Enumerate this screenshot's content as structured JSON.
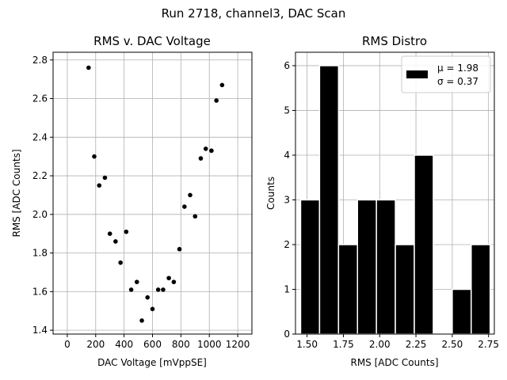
{
  "figure": {
    "suptitle": "Run 2718, channel3, DAC Scan"
  },
  "chart_data": [
    {
      "type": "scatter",
      "title": "RMS v. DAC Voltage",
      "xlabel": "DAC Voltage [mVppSE]",
      "ylabel": "RMS [ADC Counts]",
      "xlim": [
        -100,
        1300
      ],
      "ylim": [
        1.38,
        2.84
      ],
      "xticks": [
        0,
        200,
        400,
        600,
        800,
        1000,
        1200
      ],
      "yticks": [
        1.4,
        1.6,
        1.8,
        2.0,
        2.2,
        2.4,
        2.6,
        2.8
      ],
      "ytick_labels": [
        "1.4",
        "1.6",
        "1.8",
        "2.0",
        "2.2",
        "2.4",
        "2.6",
        "2.8"
      ],
      "grid": true,
      "color": "#000000",
      "points": [
        {
          "x": 150,
          "y": 2.76
        },
        {
          "x": 190,
          "y": 2.3
        },
        {
          "x": 225,
          "y": 2.15
        },
        {
          "x": 265,
          "y": 2.19
        },
        {
          "x": 300,
          "y": 1.9
        },
        {
          "x": 340,
          "y": 1.86
        },
        {
          "x": 375,
          "y": 1.75
        },
        {
          "x": 415,
          "y": 1.91
        },
        {
          "x": 450,
          "y": 1.61
        },
        {
          "x": 490,
          "y": 1.65
        },
        {
          "x": 525,
          "y": 1.45
        },
        {
          "x": 565,
          "y": 1.57
        },
        {
          "x": 600,
          "y": 1.51
        },
        {
          "x": 640,
          "y": 1.61
        },
        {
          "x": 675,
          "y": 1.61
        },
        {
          "x": 715,
          "y": 1.67
        },
        {
          "x": 750,
          "y": 1.65
        },
        {
          "x": 790,
          "y": 1.82
        },
        {
          "x": 825,
          "y": 2.04
        },
        {
          "x": 865,
          "y": 2.1
        },
        {
          "x": 900,
          "y": 1.99
        },
        {
          "x": 940,
          "y": 2.29
        },
        {
          "x": 975,
          "y": 2.34
        },
        {
          "x": 1015,
          "y": 2.33
        },
        {
          "x": 1050,
          "y": 2.59
        },
        {
          "x": 1090,
          "y": 2.67
        }
      ]
    },
    {
      "type": "bar",
      "title": "RMS Distro",
      "xlabel": "RMS [ADC Counts]",
      "ylabel": "Counts",
      "xlim": [
        1.42,
        2.79
      ],
      "ylim": [
        0,
        6.3
      ],
      "xticks": [
        1.5,
        1.75,
        2.0,
        2.25,
        2.5,
        2.75
      ],
      "xtick_labels": [
        "1.50",
        "1.75",
        "2.00",
        "2.25",
        "2.50",
        "2.75"
      ],
      "yticks": [
        0,
        1,
        2,
        3,
        4,
        5,
        6
      ],
      "grid": true,
      "color": "#000000",
      "edgecolor": "#ffffff",
      "bins": [
        {
          "x0": 1.4553,
          "x1": 1.5859,
          "count": 3
        },
        {
          "x0": 1.5859,
          "x1": 1.7165,
          "count": 6
        },
        {
          "x0": 1.7165,
          "x1": 1.8471,
          "count": 2
        },
        {
          "x0": 1.8471,
          "x1": 1.9777,
          "count": 3
        },
        {
          "x0": 1.9777,
          "x1": 2.1082,
          "count": 3
        },
        {
          "x0": 2.1082,
          "x1": 2.2388,
          "count": 2
        },
        {
          "x0": 2.2388,
          "x1": 2.3694,
          "count": 4
        },
        {
          "x0": 2.3694,
          "x1": 2.5,
          "count": 0
        },
        {
          "x0": 2.5,
          "x1": 2.6306,
          "count": 1
        },
        {
          "x0": 2.6306,
          "x1": 2.7612,
          "count": 2
        }
      ],
      "legend": {
        "placement": "top-right",
        "mu_label": "μ = 1.98",
        "sigma_label": "σ = 0.37"
      }
    }
  ]
}
